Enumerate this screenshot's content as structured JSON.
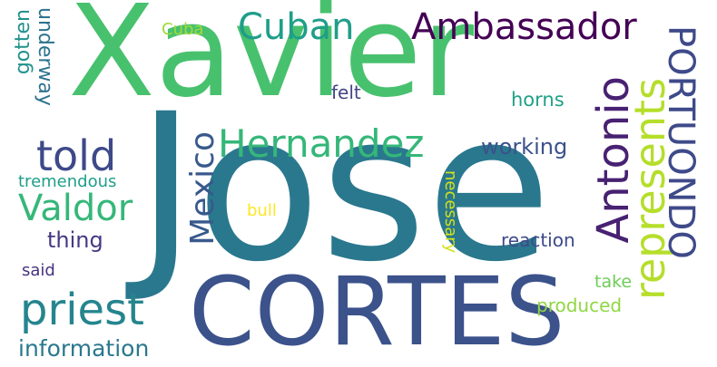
{
  "words": [
    {
      "id": "jose",
      "text": "Jose",
      "color": "#2a788e",
      "vertical": false
    },
    {
      "id": "xavier",
      "text": "Xavier",
      "color": "#48c16e",
      "vertical": false
    },
    {
      "id": "cortes",
      "text": "CORTES",
      "color": "#3b528b",
      "vertical": false
    },
    {
      "id": "hernandez",
      "text": "Hernandez",
      "color": "#35b779",
      "vertical": false
    },
    {
      "id": "antonio",
      "text": "Antonio",
      "color": "#482173",
      "vertical": true
    },
    {
      "id": "represents",
      "text": "represents",
      "color": "#b5de2b",
      "vertical": true
    },
    {
      "id": "portuondo",
      "text": "PORTUONDO",
      "color": "#3e4a89",
      "vertical": true
    },
    {
      "id": "ambassador",
      "text": "Ambassador",
      "color": "#440154",
      "vertical": false
    },
    {
      "id": "cuban",
      "text": "Cuban",
      "color": "#1f9e89",
      "vertical": false
    },
    {
      "id": "told",
      "text": "told",
      "color": "#3e4989",
      "vertical": false
    },
    {
      "id": "valdor",
      "text": "Valdor",
      "color": "#35b779",
      "vertical": false
    },
    {
      "id": "mexico",
      "text": "Mexico",
      "color": "#38598c",
      "vertical": true
    },
    {
      "id": "priest",
      "text": "priest",
      "color": "#25858e",
      "vertical": false
    },
    {
      "id": "information",
      "text": "information",
      "color": "#2a788e",
      "vertical": false
    },
    {
      "id": "working",
      "text": "working",
      "color": "#3b528b",
      "vertical": false
    },
    {
      "id": "thing",
      "text": "thing",
      "color": "#443983",
      "vertical": false
    },
    {
      "id": "tremendous",
      "text": "tremendous",
      "color": "#1f9e89",
      "vertical": false
    },
    {
      "id": "gotten",
      "text": "gotten",
      "color": "#21918c",
      "vertical": true
    },
    {
      "id": "underway",
      "text": "underway",
      "color": "#2c728e",
      "vertical": true
    },
    {
      "id": "cuba",
      "text": "Cuba",
      "color": "#a0da39",
      "vertical": false
    },
    {
      "id": "felt",
      "text": "felt",
      "color": "#414487",
      "vertical": false
    },
    {
      "id": "horns",
      "text": "horns",
      "color": "#1fa187",
      "vertical": false
    },
    {
      "id": "bull",
      "text": "bull",
      "color": "#fde725",
      "vertical": false
    },
    {
      "id": "necessary",
      "text": "necessary",
      "color": "#d2e21b",
      "vertical": true
    },
    {
      "id": "reaction",
      "text": "reaction",
      "color": "#3e4989",
      "vertical": false
    },
    {
      "id": "take",
      "text": "take",
      "color": "#6ece58",
      "vertical": false
    },
    {
      "id": "produced",
      "text": "produced",
      "color": "#90d743",
      "vertical": false
    },
    {
      "id": "said",
      "text": "said",
      "color": "#46327e",
      "vertical": false
    }
  ]
}
